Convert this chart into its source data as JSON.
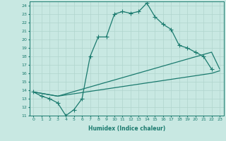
{
  "xlabel": "Humidex (Indice chaleur)",
  "xlim": [
    -0.5,
    23.5
  ],
  "ylim": [
    11,
    24.5
  ],
  "yticks": [
    11,
    12,
    13,
    14,
    15,
    16,
    17,
    18,
    19,
    20,
    21,
    22,
    23,
    24
  ],
  "xticks": [
    0,
    1,
    2,
    3,
    4,
    5,
    6,
    7,
    8,
    9,
    10,
    11,
    12,
    13,
    14,
    15,
    16,
    17,
    18,
    19,
    20,
    21,
    22,
    23
  ],
  "bg_color": "#c8e8e2",
  "line_color": "#1a7a6e",
  "grid_color": "#b0d5cd",
  "line1_x": [
    0,
    1,
    2,
    3,
    4,
    5,
    6,
    7,
    8,
    9,
    10,
    11,
    12,
    13,
    14,
    15,
    16,
    17,
    18,
    19,
    20,
    21,
    22
  ],
  "line1_y": [
    13.8,
    13.3,
    13.0,
    12.5,
    11.0,
    11.7,
    13.0,
    18.0,
    20.3,
    20.3,
    23.0,
    23.3,
    23.1,
    23.3,
    24.3,
    22.7,
    21.8,
    21.2,
    19.3,
    19.0,
    18.5,
    18.0,
    16.5
  ],
  "line2_x": [
    0,
    3,
    22,
    23
  ],
  "line2_y": [
    13.8,
    13.3,
    18.5,
    16.5
  ],
  "line3_x": [
    0,
    3,
    22,
    23
  ],
  "line3_y": [
    13.8,
    13.3,
    16.0,
    16.3
  ]
}
